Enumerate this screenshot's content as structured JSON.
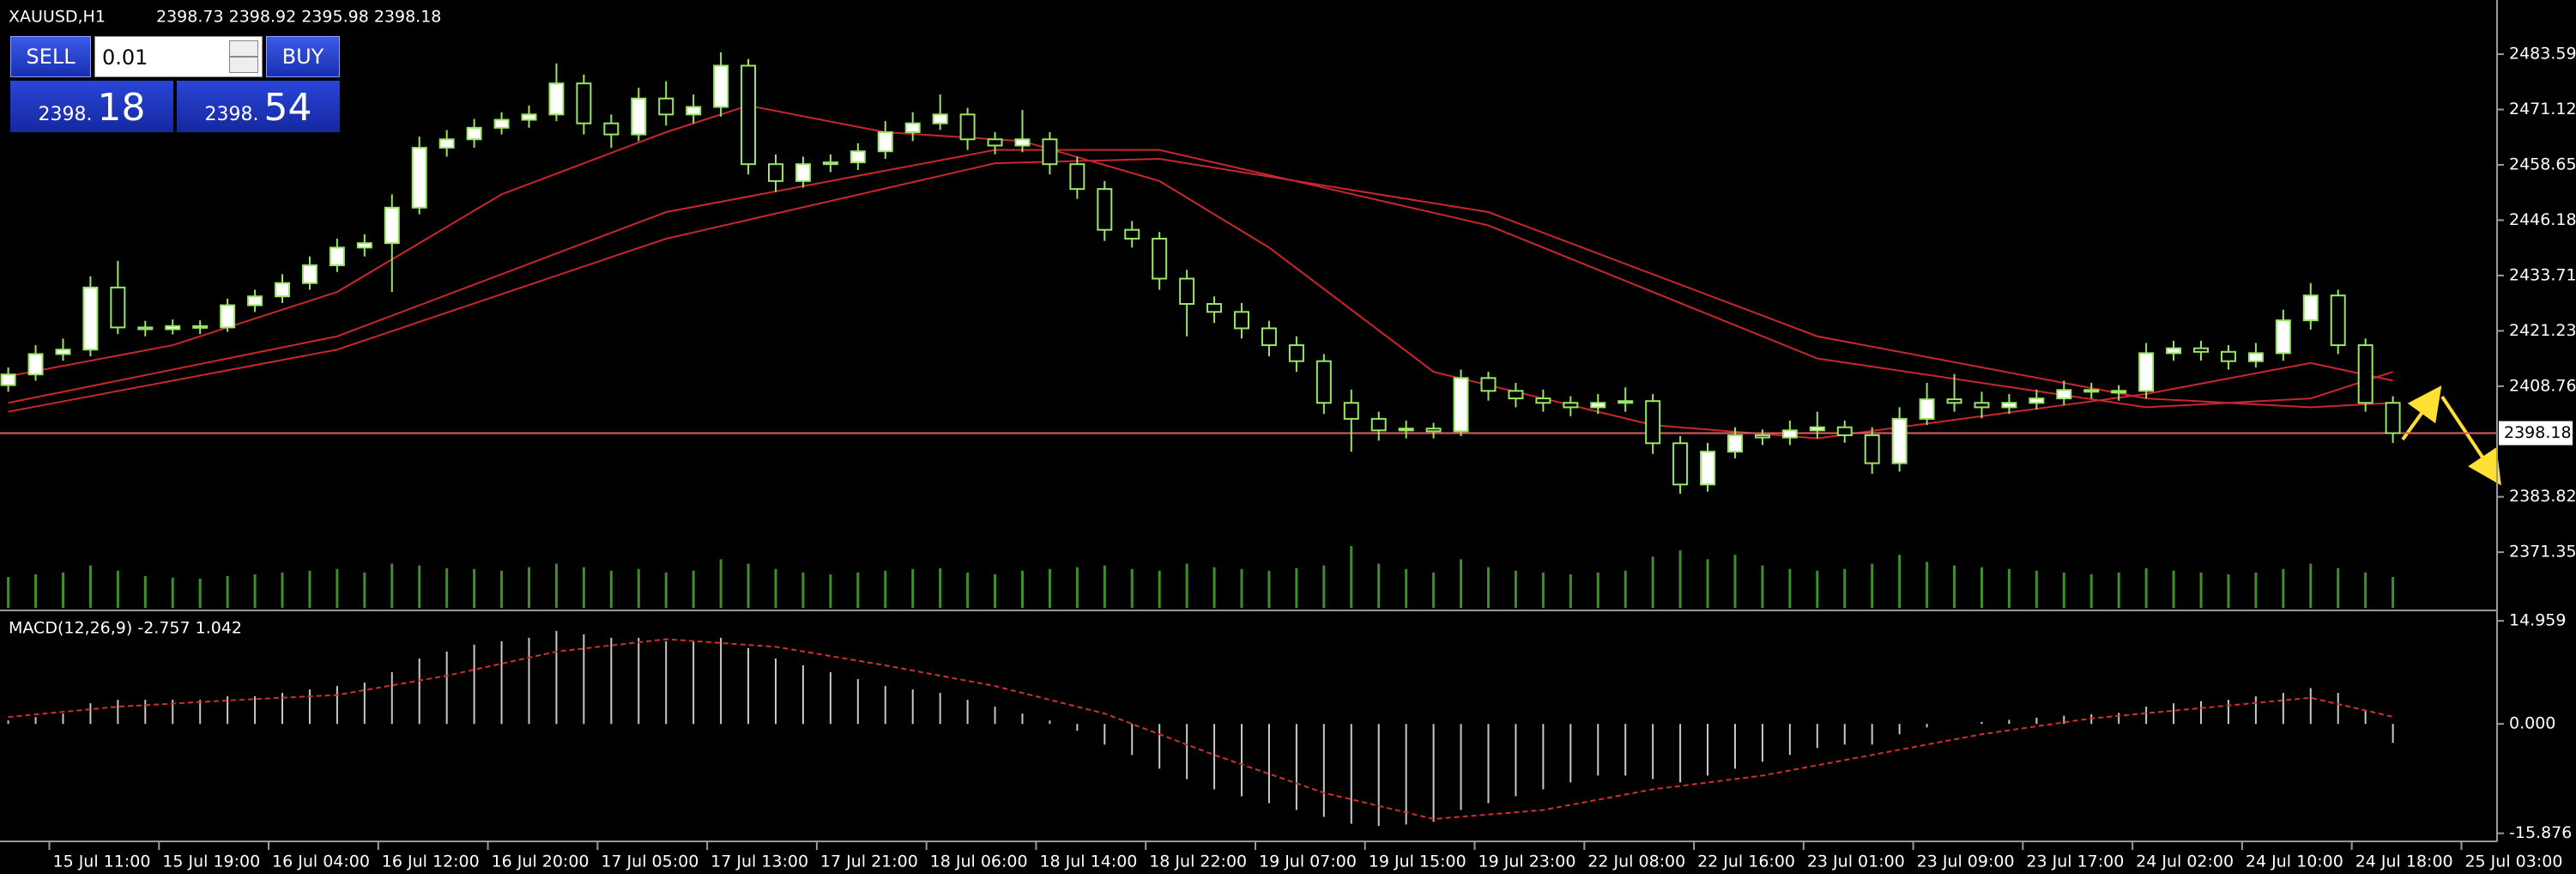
{
  "header": {
    "symbol": "XAUUSD,H1",
    "ohlc": "2398.73 2398.92 2395.98 2398.18"
  },
  "trade_panel": {
    "sell": "SELL",
    "lot": "0.01",
    "buy": "BUY",
    "bid_big": "2398.",
    "bid_small": "18",
    "ask_big": "2398.",
    "ask_small": "54"
  },
  "chart_data": [
    {
      "type": "candlestick",
      "bull_color": "#ffffff",
      "bear_color": "#000000",
      "wick_color": "#9be564",
      "volume_color": "#3f8f2a",
      "ohlc": [
        [
          2409.0,
          2413.0,
          2407.5,
          2411.4
        ],
        [
          2411.4,
          2418.0,
          2410.0,
          2416.0
        ],
        [
          2416.0,
          2419.5,
          2414.5,
          2417.0
        ],
        [
          2417.0,
          2433.5,
          2415.5,
          2431.0
        ],
        [
          2431.0,
          2437.0,
          2420.5,
          2422.0
        ],
        [
          2422.0,
          2423.5,
          2420.0,
          2421.6
        ],
        [
          2421.6,
          2423.8,
          2420.4,
          2422.3
        ],
        [
          2422.3,
          2423.6,
          2420.5,
          2422.0
        ],
        [
          2422.0,
          2428.5,
          2421.0,
          2427.0
        ],
        [
          2427.0,
          2430.5,
          2425.5,
          2429.0
        ],
        [
          2429.0,
          2434.0,
          2427.5,
          2432.0
        ],
        [
          2432.0,
          2438.0,
          2430.5,
          2436.0
        ],
        [
          2436.0,
          2442.0,
          2434.5,
          2440.0
        ],
        [
          2440.0,
          2443.0,
          2438.0,
          2441.0
        ],
        [
          2441.0,
          2452.0,
          2430.0,
          2449.0
        ],
        [
          2449.0,
          2465.0,
          2447.5,
          2462.5
        ],
        [
          2462.5,
          2466.5,
          2460.5,
          2464.4
        ],
        [
          2464.4,
          2469.0,
          2462.5,
          2467.0
        ],
        [
          2467.0,
          2470.5,
          2465.5,
          2468.8
        ],
        [
          2468.8,
          2472.0,
          2467.0,
          2470.0
        ],
        [
          2470.0,
          2481.5,
          2468.5,
          2477.0
        ],
        [
          2477.0,
          2479.0,
          2465.5,
          2468.0
        ],
        [
          2468.0,
          2470.0,
          2462.5,
          2465.5
        ],
        [
          2465.5,
          2476.0,
          2464.0,
          2473.6
        ],
        [
          2473.6,
          2477.5,
          2467.5,
          2470.0
        ],
        [
          2470.0,
          2474.5,
          2468.0,
          2471.7
        ],
        [
          2471.7,
          2484.0,
          2469.5,
          2481.0
        ],
        [
          2481.0,
          2482.5,
          2456.5,
          2458.8
        ],
        [
          2458.8,
          2461.0,
          2452.5,
          2455.0
        ],
        [
          2455.0,
          2460.5,
          2453.5,
          2458.8
        ],
        [
          2458.8,
          2461.0,
          2457.0,
          2459.2
        ],
        [
          2459.2,
          2463.5,
          2457.5,
          2461.7
        ],
        [
          2461.7,
          2468.5,
          2460.0,
          2466.0
        ],
        [
          2466.0,
          2470.5,
          2464.0,
          2468.0
        ],
        [
          2468.0,
          2474.5,
          2466.5,
          2470.0
        ],
        [
          2470.0,
          2471.5,
          2462.0,
          2464.4
        ],
        [
          2464.4,
          2466.0,
          2461.0,
          2463.0
        ],
        [
          2463.0,
          2471.0,
          2461.5,
          2464.4
        ],
        [
          2464.4,
          2466.0,
          2456.5,
          2458.8
        ],
        [
          2458.8,
          2460.5,
          2451.0,
          2453.2
        ],
        [
          2453.2,
          2455.0,
          2441.5,
          2444.0
        ],
        [
          2444.0,
          2446.0,
          2440.0,
          2442.0
        ],
        [
          2442.0,
          2443.5,
          2430.5,
          2433.0
        ],
        [
          2433.0,
          2435.0,
          2420.0,
          2427.3
        ],
        [
          2427.3,
          2429.0,
          2423.0,
          2425.5
        ],
        [
          2425.5,
          2427.5,
          2419.5,
          2421.8
        ],
        [
          2421.8,
          2423.5,
          2415.5,
          2418.0
        ],
        [
          2418.0,
          2420.0,
          2412.0,
          2414.4
        ],
        [
          2414.4,
          2416.0,
          2402.5,
          2405.0
        ],
        [
          2405.0,
          2408.0,
          2394.0,
          2401.4
        ],
        [
          2401.4,
          2403.0,
          2396.5,
          2398.8
        ],
        [
          2398.8,
          2401.0,
          2397.0,
          2399.2
        ],
        [
          2399.2,
          2400.5,
          2397.0,
          2398.6
        ],
        [
          2398.6,
          2412.5,
          2397.5,
          2410.6
        ],
        [
          2410.6,
          2412.0,
          2405.5,
          2407.7
        ],
        [
          2407.7,
          2409.5,
          2404.0,
          2406.0
        ],
        [
          2406.0,
          2408.0,
          2403.0,
          2405.0
        ],
        [
          2405.0,
          2406.5,
          2402.0,
          2404.0
        ],
        [
          2404.0,
          2407.0,
          2402.5,
          2405.0
        ],
        [
          2405.0,
          2408.5,
          2403.0,
          2405.4
        ],
        [
          2405.4,
          2407.0,
          2393.5,
          2395.9
        ],
        [
          2395.9,
          2397.5,
          2384.5,
          2386.6
        ],
        [
          2386.6,
          2396.0,
          2385.0,
          2394.0
        ],
        [
          2394.0,
          2399.5,
          2392.5,
          2397.7
        ],
        [
          2397.7,
          2399.0,
          2395.5,
          2397.2
        ],
        [
          2397.2,
          2401.0,
          2395.5,
          2398.8
        ],
        [
          2398.8,
          2403.0,
          2397.0,
          2399.5
        ],
        [
          2399.5,
          2401.0,
          2396.0,
          2397.7
        ],
        [
          2397.7,
          2399.5,
          2389.0,
          2391.4
        ],
        [
          2391.4,
          2404.0,
          2389.5,
          2401.4
        ],
        [
          2401.4,
          2409.5,
          2400.0,
          2405.8
        ],
        [
          2405.8,
          2411.5,
          2403.0,
          2405.0
        ],
        [
          2405.0,
          2407.5,
          2401.5,
          2404.0
        ],
        [
          2404.0,
          2407.0,
          2402.5,
          2405.0
        ],
        [
          2405.0,
          2408.0,
          2403.5,
          2406.0
        ],
        [
          2406.0,
          2410.0,
          2404.5,
          2407.9
        ],
        [
          2407.9,
          2409.5,
          2406.0,
          2407.6
        ],
        [
          2407.6,
          2409.0,
          2405.5,
          2407.7
        ],
        [
          2407.7,
          2418.5,
          2406.0,
          2416.2
        ],
        [
          2416.2,
          2419.0,
          2414.5,
          2417.3
        ],
        [
          2417.3,
          2419.0,
          2414.5,
          2416.5
        ],
        [
          2416.5,
          2418.0,
          2412.5,
          2414.4
        ],
        [
          2414.4,
          2418.5,
          2413.0,
          2416.2
        ],
        [
          2416.2,
          2426.0,
          2414.5,
          2423.6
        ],
        [
          2423.6,
          2432.0,
          2421.5,
          2429.2
        ],
        [
          2429.2,
          2430.5,
          2416.0,
          2418.0
        ],
        [
          2418.0,
          2419.5,
          2403.0,
          2405.0
        ],
        [
          2405.0,
          2406.5,
          2395.98,
          2398.18
        ]
      ],
      "volume": [
        35,
        38,
        40,
        48,
        42,
        36,
        34,
        33,
        36,
        38,
        40,
        42,
        44,
        40,
        50,
        48,
        45,
        44,
        42,
        46,
        50,
        46,
        42,
        44,
        40,
        42,
        55,
        50,
        44,
        40,
        38,
        40,
        42,
        44,
        45,
        40,
        38,
        42,
        44,
        46,
        48,
        44,
        42,
        50,
        46,
        44,
        42,
        45,
        48,
        70,
        50,
        44,
        40,
        55,
        46,
        42,
        40,
        38,
        40,
        42,
        58,
        65,
        55,
        60,
        48,
        44,
        42,
        44,
        50,
        60,
        52,
        48,
        46,
        44,
        42,
        40,
        38,
        40,
        45,
        42,
        40,
        38,
        40,
        44,
        50,
        45,
        40,
        35
      ],
      "ma": [
        {
          "color": "#c8282d",
          "x": [
            0,
            6,
            12,
            18,
            24,
            27,
            32,
            37,
            42,
            46,
            52,
            60,
            66,
            72,
            78,
            84,
            87
          ],
          "values": [
            2411,
            2418,
            2430,
            2452,
            2466,
            2472,
            2466,
            2464,
            2455,
            2440,
            2412,
            2400,
            2397,
            2402,
            2407,
            2414,
            2410
          ]
        },
        {
          "color": "#c8282d",
          "x": [
            0,
            12,
            24,
            36,
            42,
            54,
            66,
            78,
            84,
            87
          ],
          "values": [
            2405,
            2420,
            2448,
            2462,
            2462,
            2445,
            2415,
            2404,
            2406,
            2412
          ]
        },
        {
          "color": "#c8282d",
          "x": [
            0,
            12,
            24,
            36,
            42,
            54,
            66,
            78,
            84,
            87
          ],
          "values": [
            2403,
            2417,
            2442,
            2459,
            2460,
            2448,
            2420,
            2406,
            2404,
            2405
          ]
        }
      ],
      "price_line": 2398.18,
      "price_line_color": "#e06060",
      "grid": false,
      "xlim": [
        -0.3,
        90.8
      ],
      "ylim": [
        2358.8,
        2495.8
      ],
      "yticks": [
        2483.59,
        2471.12,
        2458.65,
        2446.18,
        2433.71,
        2421.23,
        2408.76,
        2383.82,
        2371.35
      ],
      "xticks": [
        {
          "value": 1.5,
          "label": "15 Jul 11:00"
        },
        {
          "value": 5.5,
          "label": "15 Jul 19:00"
        },
        {
          "value": 9.5,
          "label": "16 Jul 04:00"
        },
        {
          "value": 13.5,
          "label": "16 Jul 12:00"
        },
        {
          "value": 17.5,
          "label": "16 Jul 20:00"
        },
        {
          "value": 21.5,
          "label": "17 Jul 05:00"
        },
        {
          "value": 25.5,
          "label": "17 Jul 13:00"
        },
        {
          "value": 29.5,
          "label": "17 Jul 21:00"
        },
        {
          "value": 33.5,
          "label": "18 Jul 06:00"
        },
        {
          "value": 37.5,
          "label": "18 Jul 14:00"
        },
        {
          "value": 41.5,
          "label": "18 Jul 22:00"
        },
        {
          "value": 45.5,
          "label": "19 Jul 07:00"
        },
        {
          "value": 49.5,
          "label": "19 Jul 15:00"
        },
        {
          "value": 53.5,
          "label": "19 Jul 23:00"
        },
        {
          "value": 57.5,
          "label": "22 Jul 08:00"
        },
        {
          "value": 61.5,
          "label": "22 Jul 16:00"
        },
        {
          "value": 65.5,
          "label": "23 Jul 01:00"
        },
        {
          "value": 69.5,
          "label": "23 Jul 09:00"
        },
        {
          "value": 73.5,
          "label": "23 Jul 17:00"
        },
        {
          "value": 77.5,
          "label": "24 Jul 02:00"
        },
        {
          "value": 81.5,
          "label": "24 Jul 10:00"
        },
        {
          "value": 85.5,
          "label": "24 Jul 18:00"
        },
        {
          "value": 89.5,
          "label": "25 Jul 03:00"
        }
      ]
    },
    {
      "type": "macd",
      "title": "MACD(12,26,9) -2.757 1.042",
      "color": "#c8c8c8",
      "signal_color": "#d03030",
      "values": [
        0.5,
        1,
        1.5,
        3,
        3.5,
        3.5,
        3.5,
        3.5,
        4,
        4,
        4.5,
        5,
        5.5,
        6,
        7.5,
        9.5,
        10.5,
        11.5,
        12,
        12.5,
        13.5,
        13,
        12.5,
        12.5,
        12,
        12,
        12.5,
        11,
        9.5,
        8.5,
        7.5,
        6.5,
        5.5,
        5,
        4.5,
        3.5,
        2.5,
        1.5,
        0.5,
        -1,
        -3,
        -4.5,
        -6.5,
        -8,
        -9.5,
        -10.5,
        -11.5,
        -12.5,
        -13.5,
        -14.5,
        -14.8,
        -14.6,
        -14.2,
        -12.5,
        -11.5,
        -10.5,
        -9.5,
        -8.5,
        -7.5,
        -7.5,
        -8,
        -8.5,
        -7.5,
        -6.5,
        -5.5,
        -4.5,
        -3.5,
        -3,
        -3,
        -1.5,
        -0.5,
        0,
        0.3,
        0.6,
        0.9,
        1.2,
        1.4,
        1.6,
        2.5,
        3,
        3.3,
        3.5,
        4,
        4.5,
        5.2,
        4.5,
        2,
        -2.757
      ],
      "signal": {
        "x": [
          0,
          4,
          8,
          12,
          16,
          20,
          24,
          28,
          32,
          36,
          40,
          44,
          48,
          52,
          56,
          60,
          64,
          68,
          72,
          76,
          80,
          84,
          87
        ],
        "values": [
          1,
          2.5,
          3.4,
          4.2,
          7,
          10.5,
          12.3,
          11.2,
          8.5,
          5.5,
          1.5,
          -4.5,
          -10,
          -13.8,
          -12.5,
          -9.5,
          -7.5,
          -4.5,
          -1.5,
          0.8,
          2.3,
          3.8,
          1.042
        ]
      },
      "xlim": [
        -0.3,
        90.8
      ],
      "ylim": [
        -16.8,
        16.1
      ],
      "yticks": [
        14.959,
        {
          "value": 0,
          "label": "0.000"
        },
        -15.876
      ]
    }
  ]
}
